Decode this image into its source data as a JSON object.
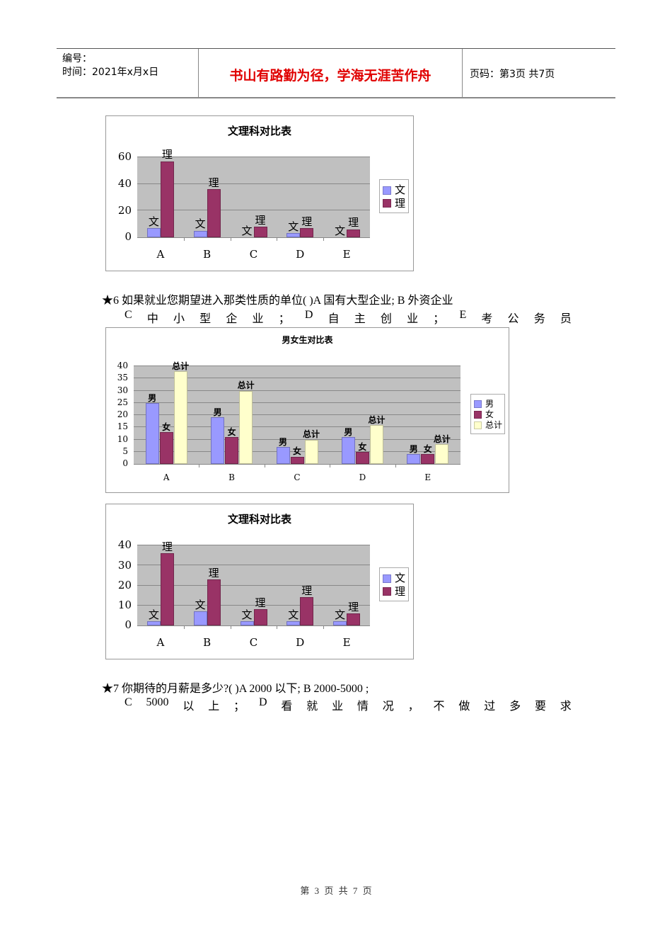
{
  "header": {
    "number_label": "编号：",
    "time_label": "时间：2021年x月x日",
    "motto": "书山有路勤为径，学海无涯苦作舟",
    "page_info": "页码：第3页 共7页"
  },
  "chart_data": [
    {
      "type": "bar",
      "title": "文理科对比表",
      "categories": [
        "A",
        "B",
        "C",
        "D",
        "E"
      ],
      "series": [
        {
          "name": "文",
          "color": "#9999ff",
          "values": [
            7,
            5,
            0,
            3,
            0
          ]
        },
        {
          "name": "理",
          "color": "#993366",
          "values": [
            57,
            36,
            8,
            7,
            6
          ]
        }
      ],
      "yticks": [
        "0",
        "20",
        "40",
        "60"
      ],
      "ylim": [
        0,
        60
      ],
      "xlabel": "",
      "ylabel": "",
      "grid": true,
      "legend_position": "right"
    },
    {
      "type": "bar",
      "title": "男女生对比表",
      "categories": [
        "A",
        "B",
        "C",
        "D",
        "E"
      ],
      "series": [
        {
          "name": "男",
          "color": "#9999ff",
          "values": [
            25,
            19,
            7,
            11,
            4
          ]
        },
        {
          "name": "女",
          "color": "#993366",
          "values": [
            13,
            11,
            3,
            5,
            4
          ]
        },
        {
          "name": "总计",
          "color": "#ffffcc",
          "values": [
            38,
            30,
            10,
            16,
            8
          ]
        }
      ],
      "yticks": [
        "0",
        "5",
        "10",
        "15",
        "20",
        "25",
        "30",
        "35",
        "40"
      ],
      "ylim": [
        0,
        40
      ],
      "xlabel": "",
      "ylabel": "",
      "grid": true,
      "legend_position": "right"
    },
    {
      "type": "bar",
      "title": "文理科对比表",
      "categories": [
        "A",
        "B",
        "C",
        "D",
        "E"
      ],
      "series": [
        {
          "name": "文",
          "color": "#9999ff",
          "values": [
            2,
            7,
            2,
            2,
            2
          ]
        },
        {
          "name": "理",
          "color": "#993366",
          "values": [
            36,
            23,
            8,
            14,
            6
          ]
        }
      ],
      "yticks": [
        "0",
        "10",
        "20",
        "30",
        "40"
      ],
      "ylim": [
        0,
        40
      ],
      "xlabel": "",
      "ylabel": "",
      "grid": true,
      "legend_position": "right"
    }
  ],
  "question6": {
    "line1": "★6 如果就业您期望进入那类性质的单位( )A 国有大型企业; B 外资企业",
    "line2": [
      "C",
      "中",
      "小",
      "型",
      "企",
      "业",
      "；",
      "D",
      "自",
      "主",
      "创",
      "业",
      "；",
      "E",
      "考",
      "公",
      "务",
      "员"
    ]
  },
  "question7": {
    "line1": "★7 你期待的月薪是多少?( )A 2000 以下; B 2000-5000 ;",
    "line2": [
      "C",
      "5000",
      "以",
      "上",
      "；",
      "D",
      "看",
      "就",
      "业",
      "情",
      "况",
      "，",
      "不",
      "做",
      "过",
      "多",
      "要",
      "求"
    ]
  },
  "footer": "第 3 页 共 7 页"
}
